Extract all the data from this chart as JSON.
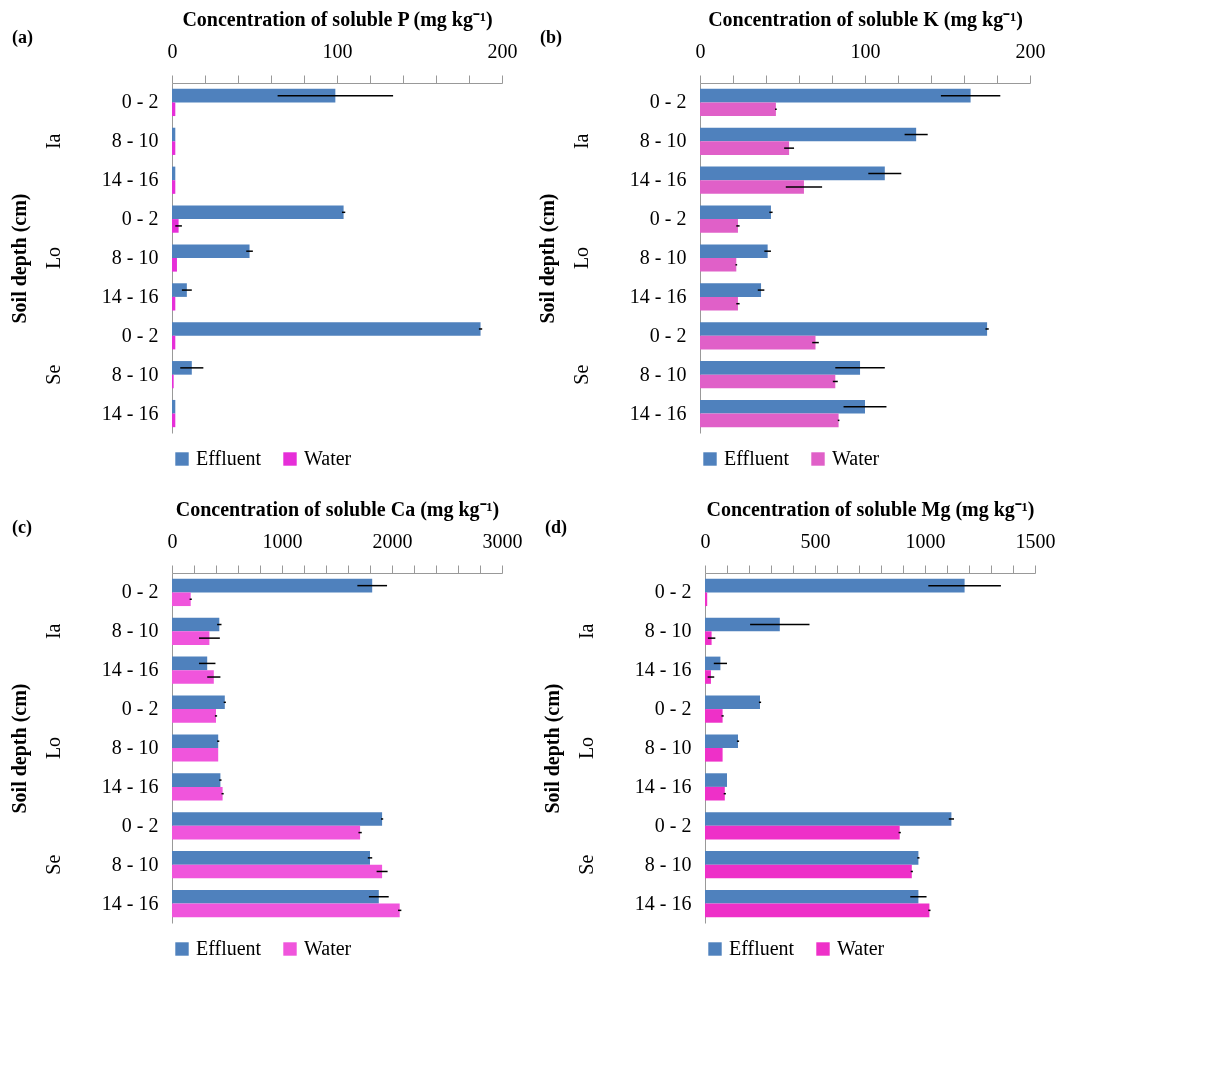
{
  "chart_data": [
    {
      "type": "bar",
      "orientation": "horizontal",
      "title": "(a)",
      "xlabel": "Concentration of soluble P (mg kg⁻¹)",
      "ylabel": "Soil depth (cm)",
      "categories": [
        "0 - 2",
        "8 - 10",
        "14 - 16",
        "0 - 2",
        "8 - 10",
        "14 - 16",
        "0 - 2",
        "8 - 10",
        "14 - 16"
      ],
      "annotations": [
        "Ia",
        "Lo",
        "Se"
      ],
      "legend": "bottom",
      "xlim": [
        0,
        200
      ],
      "xticks": [
        0,
        {
          "value": 20,
          "label": null
        },
        {
          "value": 40,
          "label": null
        },
        {
          "value": 60,
          "label": null
        },
        {
          "value": 80,
          "label": null
        },
        100,
        {
          "value": 120,
          "label": null
        },
        {
          "value": 140,
          "label": null
        },
        {
          "value": 160,
          "label": null
        },
        {
          "value": 180,
          "label": null
        },
        200
      ],
      "series": [
        {
          "name": "Effluent",
          "color": "#4f81bd",
          "values": [
            99,
            2,
            2,
            104,
            47,
            9,
            187,
            12,
            2
          ],
          "errors": [
            35,
            null,
            null,
            1,
            2,
            3,
            1,
            7,
            null
          ]
        },
        {
          "name": "Water",
          "color": "#e62ed8",
          "values": [
            2,
            2,
            2,
            4,
            3,
            2,
            2,
            1,
            2
          ],
          "errors": [
            null,
            null,
            null,
            2,
            null,
            null,
            null,
            null,
            null
          ]
        }
      ]
    },
    {
      "type": "bar",
      "orientation": "horizontal",
      "title": "(b)",
      "xlabel": "Concentration of soluble K (mg kg⁻¹)",
      "ylabel": "Soil depth (cm)",
      "categories": [
        "0 - 2",
        "8 - 10",
        "14 - 16",
        "0 - 2",
        "8 - 10",
        "14 - 16",
        "0 - 2",
        "8 - 10",
        "14 - 16"
      ],
      "annotations": [
        "Ia",
        "Lo",
        "Se"
      ],
      "legend": "bottom",
      "xlim": [
        0,
        200
      ],
      "xticks": [
        0,
        {
          "value": 20,
          "label": null
        },
        {
          "value": 40,
          "label": null
        },
        {
          "value": 60,
          "label": null
        },
        {
          "value": 80,
          "label": null
        },
        100,
        {
          "value": 120,
          "label": null
        },
        {
          "value": 140,
          "label": null
        },
        {
          "value": 160,
          "label": null
        },
        {
          "value": 180,
          "label": null
        },
        200
      ],
      "series": [
        {
          "name": "Effluent",
          "color": "#4f81bd",
          "values": [
            164,
            131,
            112,
            43,
            41,
            37,
            174,
            97,
            100
          ],
          "errors": [
            18,
            7,
            10,
            1,
            2,
            2,
            1,
            15,
            13
          ]
        },
        {
          "name": "Water",
          "color": "#e060c8",
          "values": [
            46,
            54,
            63,
            23,
            22,
            23,
            70,
            82,
            84
          ],
          "errors": [
            0.5,
            3,
            11,
            1,
            0.5,
            1,
            2,
            1.5,
            0.5
          ]
        }
      ]
    },
    {
      "type": "bar",
      "orientation": "horizontal",
      "title": "(c)",
      "xlabel": "Concentration of soluble Ca (mg kg⁻¹)",
      "ylabel": "Soil depth (cm)",
      "categories": [
        "0 - 2",
        "8 - 10",
        "14 - 16",
        "0 - 2",
        "8 - 10",
        "14 - 16",
        "0 - 2",
        "8 - 10",
        "14 - 16"
      ],
      "annotations": [
        "Ia",
        "Lo",
        "Se"
      ],
      "legend": "bottom",
      "xlim": [
        0,
        3000
      ],
      "xticks": [
        0,
        {
          "value": 200,
          "label": null
        },
        {
          "value": 400,
          "label": null
        },
        {
          "value": 600,
          "label": null
        },
        {
          "value": 800,
          "label": null
        },
        1000,
        {
          "value": 1200,
          "label": null
        },
        {
          "value": 1400,
          "label": null
        },
        {
          "value": 1600,
          "label": null
        },
        {
          "value": 1800,
          "label": null
        },
        2000,
        {
          "value": 2200,
          "label": null
        },
        {
          "value": 2400,
          "label": null
        },
        {
          "value": 2600,
          "label": null
        },
        {
          "value": 2800,
          "label": null
        },
        3000
      ],
      "series": [
        {
          "name": "Effluent",
          "color": "#4f81bd",
          "values": [
            1820,
            430,
            320,
            480,
            420,
            440,
            1910,
            1800,
            1880
          ],
          "errors": [
            135,
            20,
            75,
            10,
            10,
            10,
            10,
            20,
            90
          ]
        },
        {
          "name": "Water",
          "color": "#f055dc",
          "values": [
            170,
            340,
            380,
            400,
            420,
            460,
            1710,
            1910,
            2070
          ],
          "errors": [
            10,
            95,
            60,
            10,
            null,
            10,
            15,
            50,
            15
          ]
        }
      ]
    },
    {
      "type": "bar",
      "orientation": "horizontal",
      "title": "(d)",
      "xlabel": "Concentration of soluble Mg (mg kg⁻¹)",
      "ylabel": "Soil depth (cm)",
      "categories": [
        "0 - 2",
        "8 - 10",
        "14 - 16",
        "0 - 2",
        "8 - 10",
        "14 - 16",
        "0 - 2",
        "8 - 10",
        "14 - 16"
      ],
      "annotations": [
        "Ia",
        "Lo",
        "Se"
      ],
      "legend": "bottom",
      "xlim": [
        0,
        1500
      ],
      "xticks": [
        0,
        {
          "value": 100,
          "label": null
        },
        {
          "value": 200,
          "label": null
        },
        {
          "value": 300,
          "label": null
        },
        {
          "value": 400,
          "label": null
        },
        500,
        {
          "value": 600,
          "label": null
        },
        {
          "value": 700,
          "label": null
        },
        {
          "value": 800,
          "label": null
        },
        {
          "value": 900,
          "label": null
        },
        1000,
        {
          "value": 1100,
          "label": null
        },
        {
          "value": 1200,
          "label": null
        },
        {
          "value": 1300,
          "label": null
        },
        {
          "value": 1400,
          "label": null
        },
        1500
      ],
      "series": [
        {
          "name": "Effluent",
          "color": "#4f81bd",
          "values": [
            1180,
            340,
            70,
            250,
            150,
            100,
            1120,
            970,
            970
          ],
          "errors": [
            165,
            135,
            30,
            5,
            5,
            null,
            12,
            5,
            37
          ]
        },
        {
          "name": "Water",
          "color": "#ee30c8",
          "values": [
            10,
            30,
            27,
            80,
            80,
            90,
            885,
            940,
            1020
          ],
          "errors": [
            null,
            17,
            15,
            5,
            null,
            5,
            5,
            5,
            5
          ]
        }
      ]
    }
  ]
}
